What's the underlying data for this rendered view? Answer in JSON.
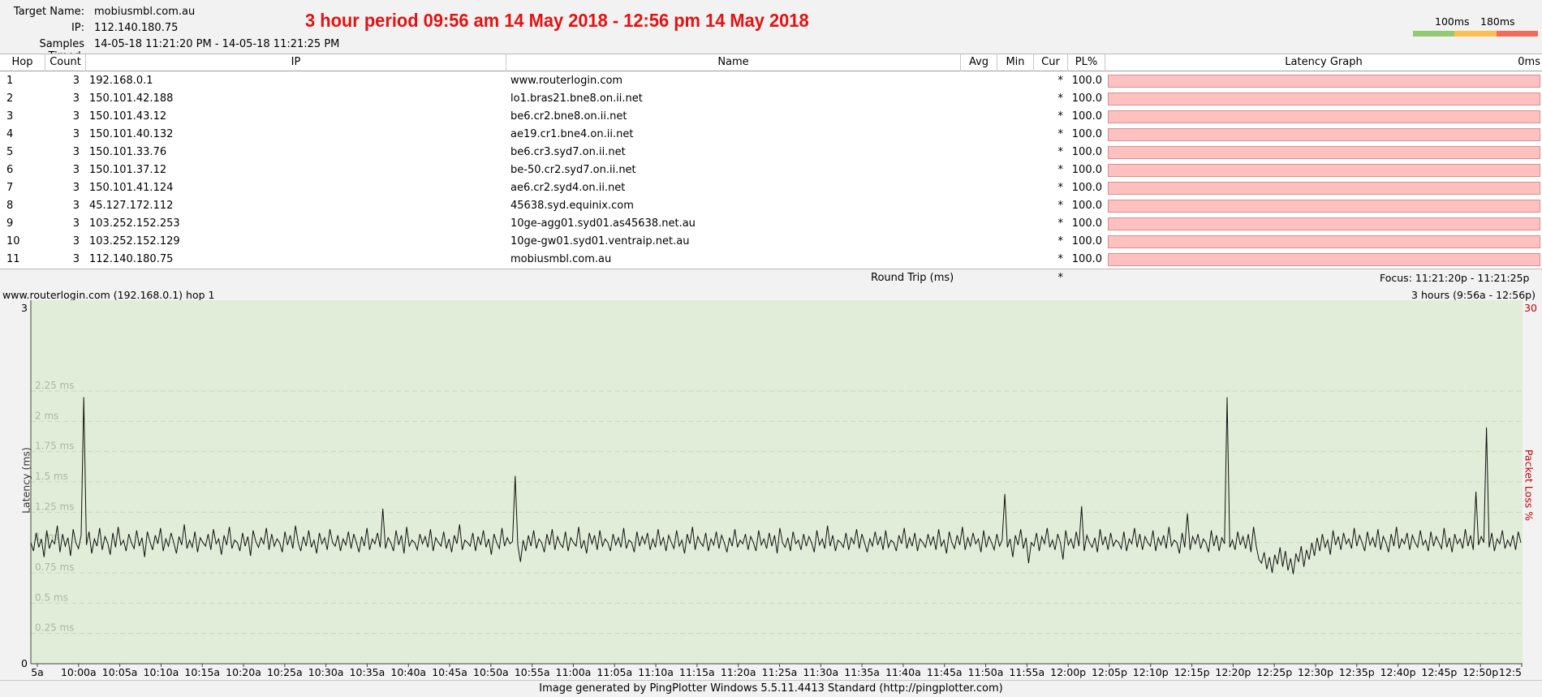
{
  "header": {
    "target_label": "Target Name:",
    "target_value": "mobiusmbl.com.au",
    "ip_label": "IP:",
    "ip_value": "112.140.180.75",
    "samples_label": "Samples Timed:",
    "samples_value": "14-05-18 11:21:20 PM - 14-05-18 11:21:25 PM",
    "banner": "3 hour period 09:56 am 14 May 2018 - 12:56 pm 14 May 2018",
    "legend_100": "100ms",
    "legend_180": "180ms",
    "legend_colors": [
      "#94c973",
      "#ffbf4f",
      "#f26a5a"
    ]
  },
  "table": {
    "columns": {
      "hop": "Hop",
      "count": "Count",
      "ip": "IP",
      "name": "Name",
      "avg": "Avg",
      "min": "Min",
      "cur": "Cur",
      "pl": "PL%",
      "latency_graph": "Latency Graph",
      "zero_ms": "0ms"
    },
    "rows": [
      {
        "hop": "1",
        "count": "3",
        "ip": "192.168.0.1",
        "name": "www.routerlogin.com",
        "cur": "*",
        "pl": "100.0"
      },
      {
        "hop": "2",
        "count": "3",
        "ip": "150.101.42.188",
        "name": "lo1.bras21.bne8.on.ii.net",
        "cur": "*",
        "pl": "100.0"
      },
      {
        "hop": "3",
        "count": "3",
        "ip": "150.101.43.12",
        "name": "be6.cr2.bne8.on.ii.net",
        "cur": "*",
        "pl": "100.0"
      },
      {
        "hop": "4",
        "count": "3",
        "ip": "150.101.40.132",
        "name": "ae19.cr1.bne4.on.ii.net",
        "cur": "*",
        "pl": "100.0"
      },
      {
        "hop": "5",
        "count": "3",
        "ip": "150.101.33.76",
        "name": "be6.cr3.syd7.on.ii.net",
        "cur": "*",
        "pl": "100.0"
      },
      {
        "hop": "6",
        "count": "3",
        "ip": "150.101.37.12",
        "name": "be-50.cr2.syd7.on.ii.net",
        "cur": "*",
        "pl": "100.0"
      },
      {
        "hop": "7",
        "count": "3",
        "ip": "150.101.41.124",
        "name": "ae6.cr2.syd4.on.ii.net",
        "cur": "*",
        "pl": "100.0"
      },
      {
        "hop": "8",
        "count": "3",
        "ip": "45.127.172.112",
        "name": "45638.syd.equinix.com",
        "cur": "*",
        "pl": "100.0"
      },
      {
        "hop": "9",
        "count": "3",
        "ip": "103.252.152.253",
        "name": "10ge-agg01.syd01.as45638.net.au",
        "cur": "*",
        "pl": "100.0"
      },
      {
        "hop": "10",
        "count": "3",
        "ip": "103.252.152.129",
        "name": "10ge-gw01.syd01.ventraip.net.au",
        "cur": "*",
        "pl": "100.0"
      },
      {
        "hop": "11",
        "count": "3",
        "ip": "112.140.180.75",
        "name": "mobiusmbl.com.au",
        "cur": "*",
        "pl": "100.0"
      }
    ],
    "round_trip_label": "Round Trip (ms)",
    "round_trip_cur": "*",
    "focus": "Focus: 11:21:20p - 11:21:25p",
    "row_bar_color": "#ffc0c0"
  },
  "graph": {
    "title": "www.routerlogin.com (192.168.0.1) hop 1",
    "range_label": "3 hours (9:56a - 12:56p)",
    "y_axis_title": "Latency (ms)",
    "right_axis_title": "Packet Loss %",
    "right_axis_max": "30",
    "y_top": "3",
    "y_bottom": "0",
    "background_color": "#e1edd8",
    "line_color": "#111111"
  },
  "chart_data": {
    "type": "line",
    "title": "",
    "xlabel": "",
    "ylabel": "Latency (ms)",
    "ylim": [
      0,
      3
    ],
    "y_ticks": [
      "0.25 ms",
      "0.5 ms",
      "0.75 ms",
      "1 ms",
      "1.25 ms",
      "1.5 ms",
      "1.75 ms",
      "2 ms",
      "2.25 ms"
    ],
    "x_ticks": [
      "5a",
      "10:00a",
      "10:05a",
      "10:10a",
      "10:15a",
      "10:20a",
      "10:25a",
      "10:30a",
      "10:35a",
      "10:40a",
      "10:45a",
      "10:50a",
      "10:55a",
      "11:00a",
      "11:05a",
      "11:10a",
      "11:15a",
      "11:20a",
      "11:25a",
      "11:30a",
      "11:35a",
      "11:40a",
      "11:45a",
      "11:50a",
      "11:55a",
      "12:00p",
      "12:05p",
      "12:10p",
      "12:15p",
      "12:20p",
      "12:25p",
      "12:30p",
      "12:35p",
      "12:40p",
      "12:45p",
      "12:50p",
      "12:5"
    ],
    "grid": true,
    "series": [
      {
        "values": [
          1.0,
          0.93,
          1.08,
          0.96,
          1.03,
          0.88,
          1.1,
          0.95,
          1.02,
          0.99,
          1.14,
          0.92,
          1.07,
          0.97,
          1.04,
          0.89,
          1.11,
          1.0,
          0.95,
          1.06,
          2.2,
          0.98,
          1.09,
          0.91,
          1.03,
          0.97,
          1.12,
          0.94,
          1.05,
          1.0,
          0.9,
          1.08,
          0.96,
          1.13,
          0.98,
          1.02,
          0.93,
          1.07,
          1.0,
          0.95,
          1.1,
          0.97,
          1.04,
          0.88,
          1.09,
          1.01,
          0.94,
          1.06,
          0.99,
          1.12,
          0.93,
          1.03,
          0.97,
          1.08,
          1.0,
          0.91,
          1.05,
          0.98,
          1.15,
          0.95,
          1.02,
          0.96,
          1.09,
          0.92,
          1.04,
          1.0,
          0.97,
          1.07,
          0.94,
          1.11,
          0.99,
          1.03,
          0.9,
          1.06,
          0.98,
          1.13,
          0.95,
          1.02,
          1.0,
          0.93,
          1.08,
          0.97,
          1.05,
          0.89,
          1.1,
          1.01,
          0.96,
          1.04,
          0.99,
          1.12,
          0.94,
          1.07,
          0.97,
          1.03,
          1.0,
          0.92,
          1.09,
          0.98,
          1.06,
          0.95,
          1.14,
          1.0,
          0.93,
          1.05,
          0.97,
          1.1,
          0.96,
          1.02,
          0.91,
          1.08,
          0.99,
          1.04,
          0.94,
          1.11,
          1.0,
          0.97,
          1.06,
          0.93,
          1.03,
          0.98,
          1.09,
          0.95,
          1.07,
          1.0,
          0.92,
          1.05,
          0.97,
          1.12,
          0.94,
          1.03,
          0.99,
          1.08,
          0.96,
          1.28,
          0.95,
          1.04,
          1.0,
          0.93,
          1.1,
          0.98,
          1.06,
          0.91,
          1.13,
          0.97,
          1.02,
          1.0,
          0.94,
          1.07,
          0.99,
          1.05,
          0.96,
          1.11,
          0.93,
          1.04,
          1.0,
          0.97,
          1.09,
          0.95,
          1.03,
          0.92,
          1.06,
          0.99,
          1.15,
          0.94,
          1.02,
          1.0,
          0.97,
          1.08,
          0.93,
          1.05,
          0.98,
          1.1,
          0.96,
          1.03,
          0.9,
          1.07,
          1.0,
          0.95,
          1.12,
          0.97,
          1.04,
          0.99,
          1.01,
          1.55,
          0.98,
          0.84,
          1.02,
          0.93,
          1.06,
          0.97,
          1.1,
          0.95,
          1.03,
          1.0,
          0.92,
          1.07,
          0.98,
          1.11,
          0.94,
          1.05,
          0.99,
          0.96,
          1.09,
          0.93,
          1.04,
          1.0,
          0.97,
          1.13,
          0.95,
          1.02,
          0.91,
          1.08,
          0.99,
          1.06,
          0.94,
          1.1,
          0.97,
          1.03,
          1.0,
          0.93,
          1.07,
          0.98,
          1.04,
          0.96,
          1.12,
          0.95,
          1.02,
          1.0,
          0.92,
          1.09,
          0.97,
          1.05,
          0.99,
          1.08,
          0.94,
          1.03,
          0.96,
          1.11,
          0.98,
          1.04,
          0.93,
          1.06,
          1.0,
          0.95,
          1.1,
          0.97,
          1.02,
          0.91,
          1.07,
          0.99,
          1.13,
          0.94,
          1.05,
          1.0,
          0.97,
          1.08,
          0.93,
          1.03,
          0.98,
          1.09,
          0.95,
          1.06,
          1.0,
          0.92,
          1.04,
          0.97,
          1.11,
          0.96,
          1.02,
          0.99,
          1.07,
          0.94,
          1.05,
          1.0,
          0.93,
          1.1,
          0.98,
          1.03,
          0.95,
          1.08,
          0.97,
          1.06,
          0.91,
          1.12,
          1.0,
          0.96,
          1.04,
          0.93,
          1.09,
          0.99,
          1.02,
          0.94,
          1.07,
          0.97,
          1.05,
          1.0,
          0.92,
          1.1,
          0.98,
          1.03,
          0.95,
          1.14,
          0.97,
          1.06,
          0.93,
          1.02,
          1.0,
          0.96,
          1.08,
          0.94,
          1.04,
          0.99,
          1.11,
          0.95,
          1.07,
          1.0,
          0.92,
          1.03,
          0.97,
          1.09,
          0.98,
          1.05,
          0.94,
          1.1,
          0.96,
          1.02,
          1.0,
          0.93,
          1.06,
          0.99,
          1.12,
          0.95,
          1.04,
          0.97,
          1.08,
          0.93,
          1.03,
          1.0,
          0.96,
          1.07,
          0.98,
          1.05,
          0.94,
          1.11,
          0.97,
          1.02,
          0.91,
          1.09,
          1.0,
          0.95,
          1.06,
          0.98,
          1.13,
          0.94,
          1.04,
          0.97,
          1.08,
          0.99,
          1.03,
          0.92,
          1.1,
          0.96,
          1.05,
          1.0,
          0.94,
          1.07,
          0.97,
          1.02,
          1.4,
          0.96,
          1.03,
          0.88,
          1.06,
          0.98,
          1.11,
          0.95,
          1.04,
          0.83,
          1.0,
          0.97,
          1.08,
          0.93,
          1.05,
          0.99,
          1.12,
          0.96,
          1.02,
          0.94,
          1.07,
          1.0,
          0.86,
          1.1,
          0.98,
          1.03,
          0.95,
          1.09,
          0.97,
          1.3,
          0.93,
          1.06,
          1.0,
          0.96,
          1.04,
          0.92,
          1.11,
          0.98,
          1.05,
          0.94,
          1.08,
          0.97,
          1.02,
          1.0,
          0.95,
          1.09,
          0.93,
          1.03,
          0.99,
          1.12,
          0.96,
          1.07,
          0.94,
          1.05,
          1.0,
          0.97,
          1.1,
          0.93,
          1.04,
          0.98,
          1.06,
          0.95,
          1.13,
          0.97,
          1.02,
          1.0,
          0.91,
          1.08,
          0.96,
          1.24,
          0.94,
          1.05,
          0.99,
          1.07,
          0.95,
          1.03,
          1.0,
          0.92,
          1.1,
          0.97,
          1.06,
          0.93,
          1.04,
          0.99,
          2.2,
          0.96,
          1.02,
          0.94,
          1.09,
          0.98,
          1.05,
          0.95,
          1.07,
          0.92,
          1.13,
          0.97,
          0.86,
          0.83,
          0.92,
          0.78,
          0.88,
          0.75,
          0.9,
          0.82,
          0.96,
          0.8,
          0.93,
          0.77,
          0.87,
          0.74,
          0.91,
          0.84,
          0.97,
          0.8,
          0.94,
          0.86,
          1.0,
          0.89,
          1.04,
          0.93,
          1.07,
          0.96,
          1.02,
          0.9,
          1.1,
          0.98,
          1.05,
          0.94,
          1.08,
          0.99,
          1.03,
          0.95,
          1.12,
          0.97,
          1.06,
          1.0,
          0.93,
          1.09,
          0.98,
          1.04,
          0.96,
          1.11,
          0.94,
          1.05,
          1.0,
          0.92,
          1.07,
          0.97,
          1.13,
          0.95,
          1.03,
          0.99,
          1.08,
          0.94,
          1.06,
          1.0,
          0.96,
          1.1,
          0.98,
          1.02,
          0.93,
          1.09,
          0.97,
          1.05,
          1.0,
          0.95,
          1.12,
          0.96,
          1.04,
          0.92,
          1.07,
          0.99,
          1.03,
          0.95,
          1.11,
          0.97,
          1.06,
          0.94,
          1.42,
          0.98,
          1.05,
          1.0,
          1.95,
          0.96,
          1.08,
          0.93,
          1.03,
          0.99,
          1.1,
          0.95,
          1.02,
          0.97,
          1.06,
          0.94,
          1.09,
          1.0
        ]
      }
    ]
  },
  "footer": {
    "text": "Image generated by PingPlotter Windows 5.5.11.4413 Standard (http://pingplotter.com)"
  }
}
